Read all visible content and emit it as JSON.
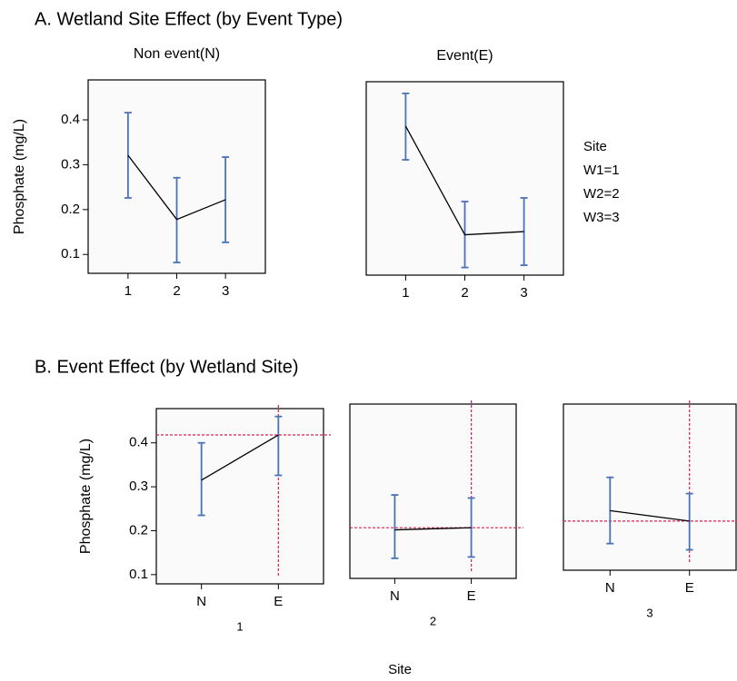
{
  "section_a_title": "A.  Wetland Site Effect (by Event Type)",
  "section_b_title": "B.  Event Effect (by  Wetland Site)",
  "site_note": [
    "Site",
    "W1=1",
    "W2=2",
    "W3=3"
  ],
  "x_label": "Site",
  "chart_data": [
    {
      "type": "line",
      "title": "Non event(N)",
      "ylabel": "Phosphate (mg/L)",
      "categories": [
        "1",
        "2",
        "3"
      ],
      "values": [
        0.321,
        0.178,
        0.222
      ],
      "lower": [
        0.226,
        0.082,
        0.127
      ],
      "upper": [
        0.416,
        0.271,
        0.317
      ],
      "ylim": [
        0.058,
        0.489
      ],
      "yticks": [
        0.1,
        0.2,
        0.3,
        0.4
      ],
      "color": "#000000",
      "error_color": "#4a72b8"
    },
    {
      "type": "line",
      "title": "Event(E)",
      "categories": [
        "1",
        "2",
        "3"
      ],
      "values": [
        0.39,
        0.148,
        0.155
      ],
      "lower": [
        0.315,
        0.075,
        0.08
      ],
      "upper": [
        0.463,
        0.222,
        0.23
      ],
      "ylim": [
        0.058,
        0.489
      ],
      "color": "#000000",
      "error_color": "#4a72b8"
    },
    {
      "type": "line",
      "xlabel": "1",
      "ylabel": "Phosphate (mg/L)",
      "categories": [
        "N",
        "E"
      ],
      "values": [
        0.315,
        0.418
      ],
      "lower": [
        0.235,
        0.326
      ],
      "upper": [
        0.4,
        0.46
      ],
      "ylim": [
        0.079,
        0.478
      ],
      "yticks": [
        0.1,
        0.2,
        0.3,
        0.4
      ],
      "ref_y": 0.418,
      "ref_color": "#e0204a",
      "color": "#000000",
      "error_color": "#4a72b8"
    },
    {
      "type": "line",
      "xlabel": "2",
      "categories": [
        "N",
        "E"
      ],
      "values": [
        0.19,
        0.195
      ],
      "lower": [
        0.125,
        0.128
      ],
      "upper": [
        0.27,
        0.263
      ],
      "ylim": [
        0.079,
        0.478
      ],
      "ref_y": 0.195,
      "ref_color": "#e0204a",
      "color": "#000000",
      "error_color": "#4a72b8"
    },
    {
      "type": "line",
      "xlabel": "3",
      "categories": [
        "N",
        "E"
      ],
      "values": [
        0.222,
        0.197
      ],
      "lower": [
        0.143,
        0.128
      ],
      "upper": [
        0.302,
        0.263
      ],
      "ylim": [
        0.079,
        0.478
      ],
      "ref_y": 0.197,
      "ref_color": "#e0204a",
      "color": "#000000",
      "error_color": "#4a72b8"
    }
  ]
}
